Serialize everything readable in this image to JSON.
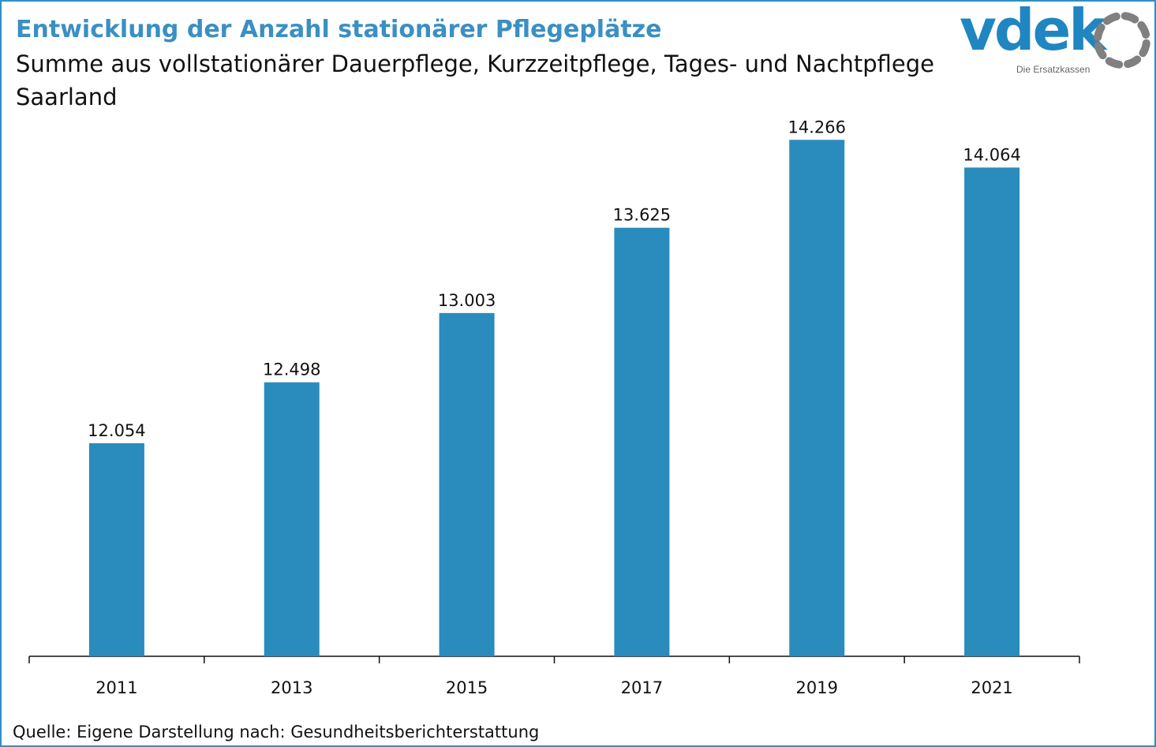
{
  "header": {
    "title": "Entwicklung der Anzahl stationärer Pflegeplätze",
    "subtitle": "Summe aus vollstationärer Dauerpflege, Kurzzeitpflege, Tages- und Nachtpflege",
    "region": "Saarland"
  },
  "logo": {
    "wordmark": "vdek",
    "tagline": "Die Ersatzkassen",
    "wordmark_color": "#1f86c1",
    "ring_color": "#808080"
  },
  "chart_data": {
    "type": "bar",
    "categories": [
      "2011",
      "2013",
      "2015",
      "2017",
      "2019",
      "2021"
    ],
    "values": [
      12054,
      12498,
      13003,
      13625,
      14266,
      14064
    ],
    "data_labels": [
      "12.054",
      "12.498",
      "13.003",
      "13.625",
      "14.266",
      "14.064"
    ],
    "bar_color": "#2a8bbd",
    "ylim": [
      10500,
      14500
    ],
    "grid": false,
    "legend": "none"
  },
  "footer": {
    "source": "Quelle: Eigene Darstellung nach: Gesundheitsberichterstattung"
  },
  "colors": {
    "frame": "#2f8fc6",
    "title": "#3a8fc3",
    "text": "#111111"
  }
}
